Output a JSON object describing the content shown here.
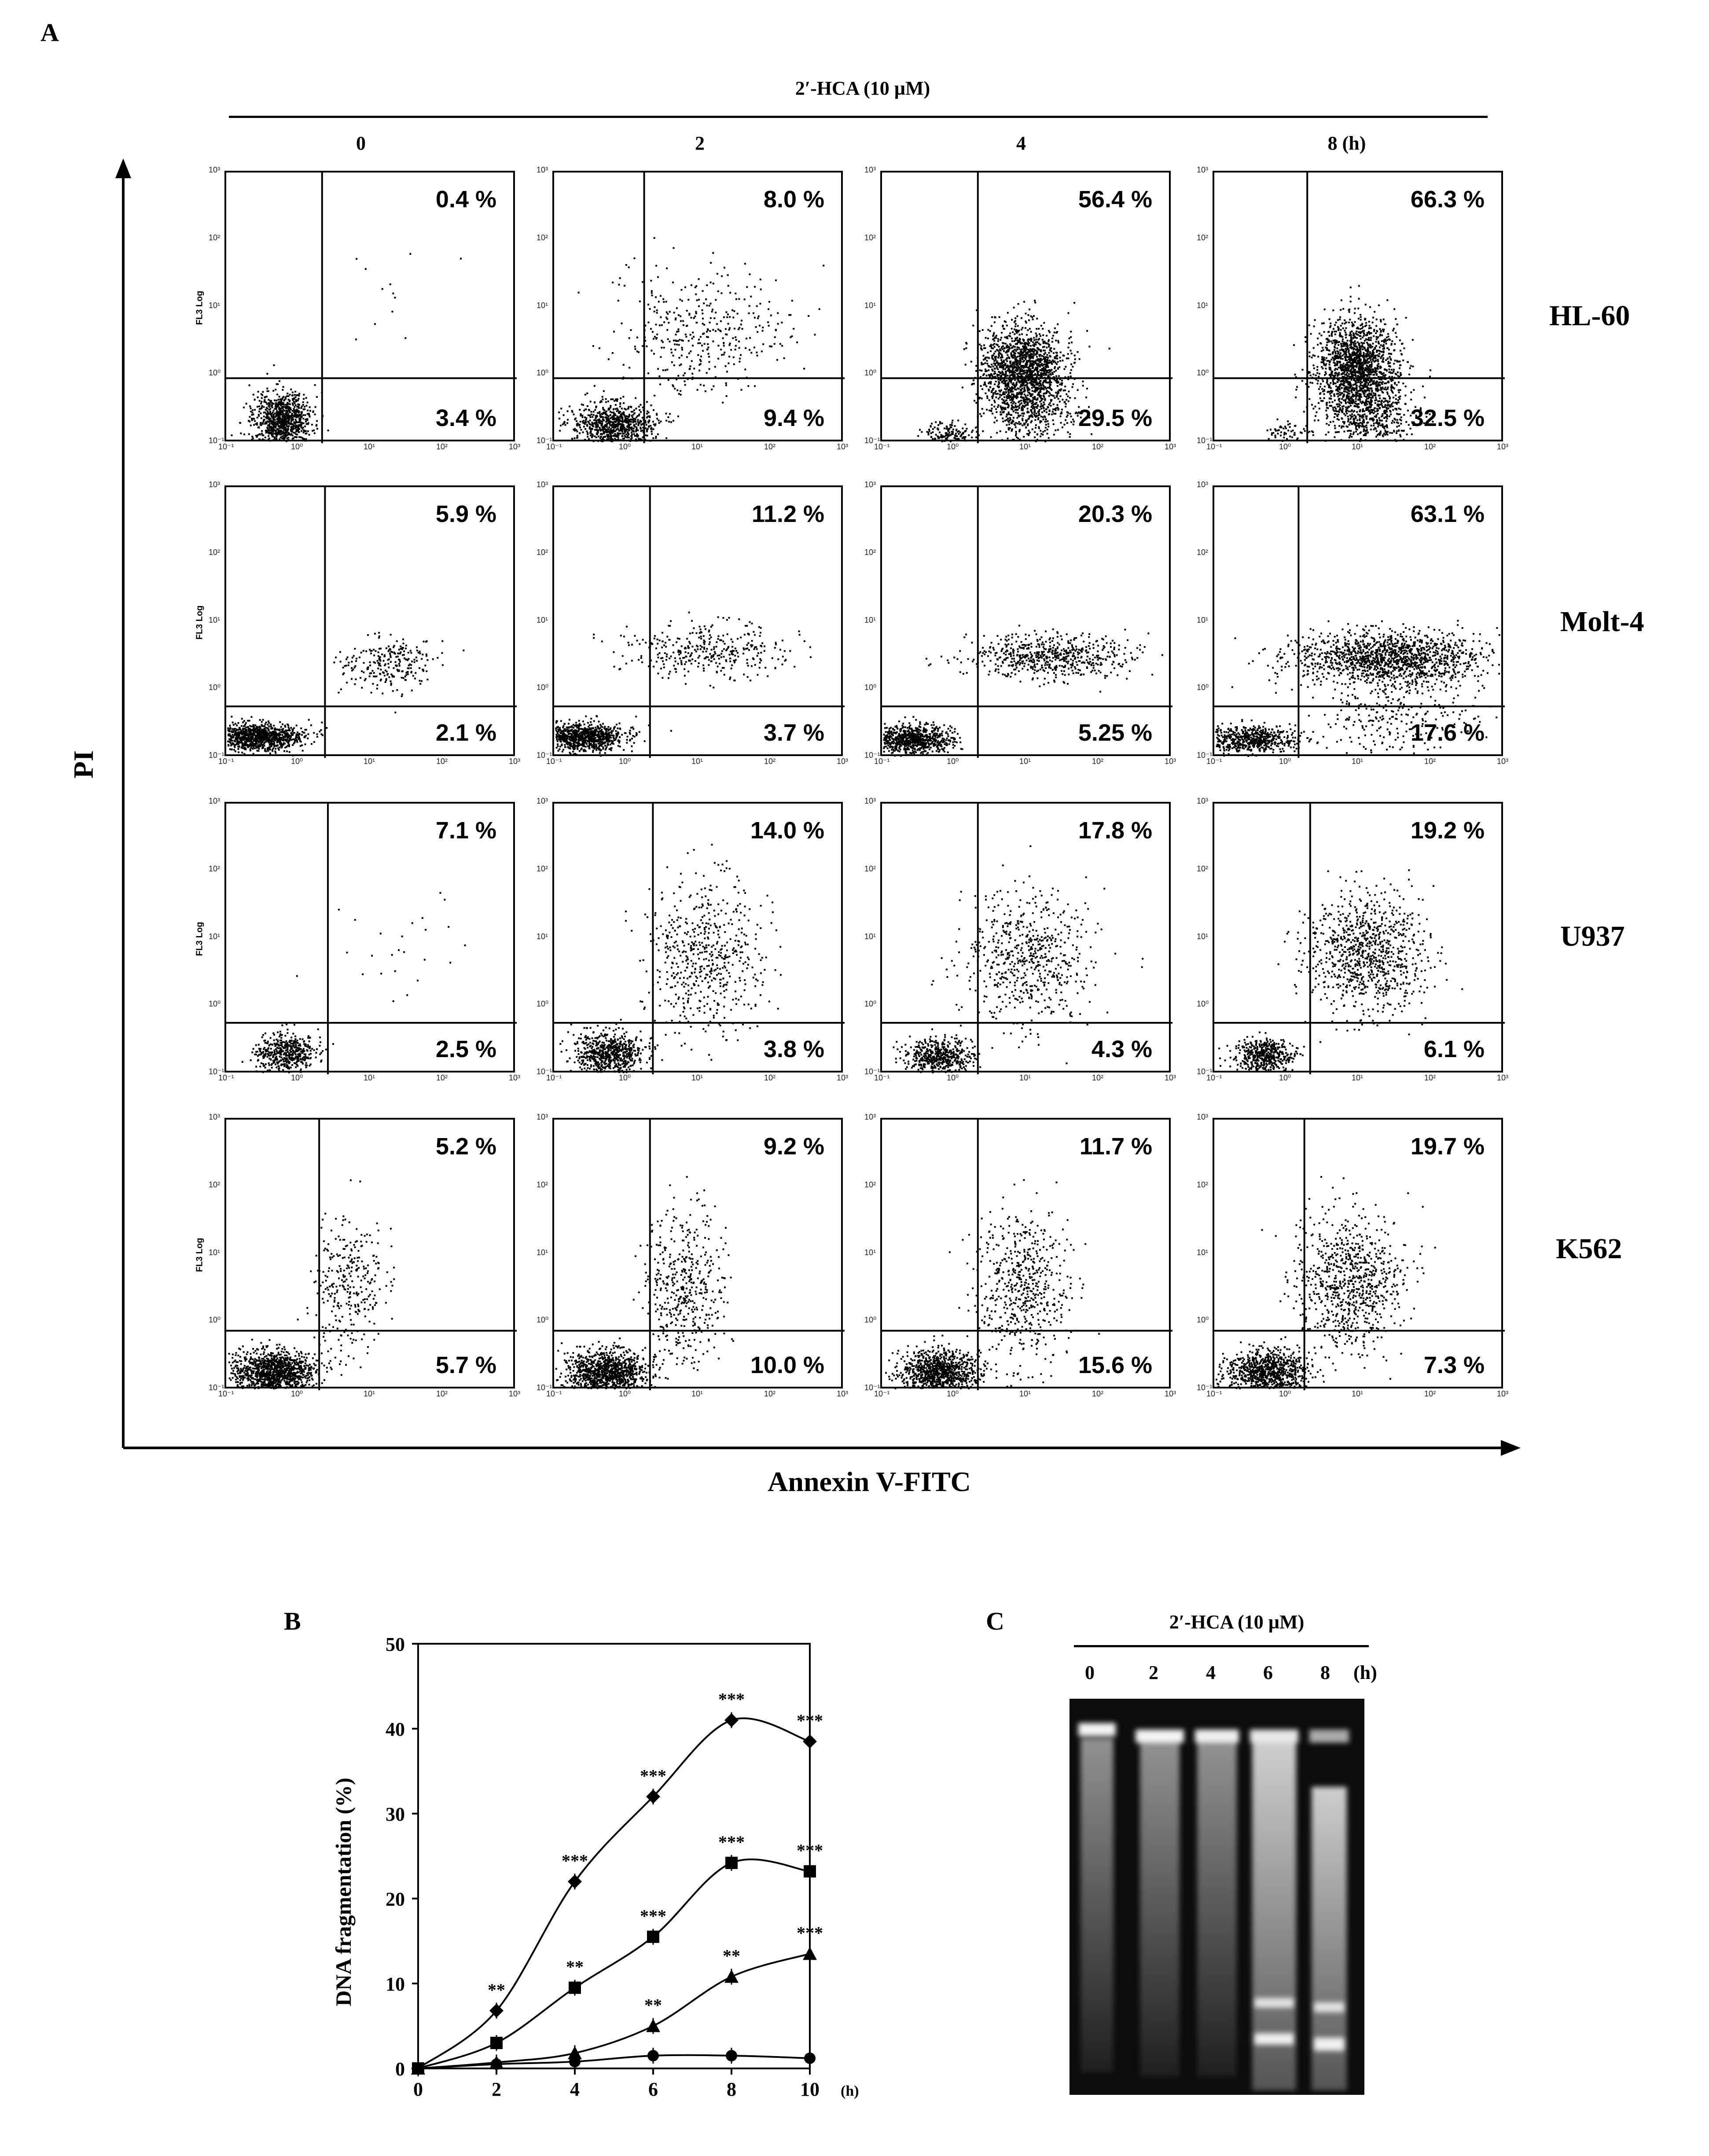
{
  "panel_a": {
    "letter": "A",
    "treatment": "2′-HCA (10 µM)",
    "timepoints": [
      "0",
      "2",
      "4",
      "8 (h)"
    ],
    "y_axis_title": "PI",
    "x_axis_title": "Annexin V-FITC",
    "ylabel_small": "FL3 Log",
    "rows": [
      {
        "cell_line": "HL-60",
        "upper": [
          "0.4 %",
          "8.0 %",
          "56.4 %",
          "66.3 %"
        ],
        "lower": [
          "3.4 %",
          "9.4 %",
          "29.5 %",
          "32.5 %"
        ]
      },
      {
        "cell_line": "Molt-4",
        "upper": [
          "5.9 %",
          "11.2 %",
          "20.3 %",
          "63.1 %"
        ],
        "lower": [
          "2.1 %",
          "3.7 %",
          "5.25 %",
          "17.6 %"
        ]
      },
      {
        "cell_line": "U937",
        "upper": [
          "7.1 %",
          "14.0 %",
          "17.8 %",
          "19.2 %"
        ],
        "lower": [
          "2.5 %",
          "3.8 %",
          "4.3 %",
          "6.1 %"
        ]
      },
      {
        "cell_line": "K562",
        "upper": [
          "5.2 %",
          "9.2 %",
          "11.7 %",
          "19.7 %"
        ],
        "lower": [
          "5.7 %",
          "10.0 %",
          "15.6 %",
          "7.3 %"
        ]
      }
    ]
  },
  "chart_data": {
    "type": "line",
    "panel_letter": "B",
    "title": "",
    "xlabel": "",
    "x_unit": "(h)",
    "ylabel": "DNA fragmentation (%)",
    "x": [
      0,
      2,
      4,
      6,
      8,
      10
    ],
    "xticks": [
      "0",
      "2",
      "4",
      "6",
      "8",
      "10"
    ],
    "ylim": [
      0,
      50
    ],
    "yticks": [
      "0",
      "10",
      "20",
      "30",
      "40",
      "50"
    ],
    "series": [
      {
        "name": "diamond",
        "marker": "diamond",
        "values": [
          0,
          6.8,
          22,
          32,
          41,
          38.5
        ],
        "stars": [
          "",
          "**",
          "***",
          "***",
          "***",
          "***"
        ]
      },
      {
        "name": "square",
        "marker": "square",
        "values": [
          0,
          3,
          9.5,
          15.5,
          24.2,
          23.2
        ],
        "stars": [
          "",
          "",
          "**",
          "***",
          "***",
          "***"
        ]
      },
      {
        "name": "triangle",
        "marker": "triangle",
        "values": [
          0,
          0.7,
          1.8,
          5,
          10.8,
          13.5
        ],
        "stars": [
          "",
          "",
          "",
          "**",
          "**",
          "***"
        ]
      },
      {
        "name": "circle",
        "marker": "circle",
        "values": [
          0,
          0.5,
          0.8,
          1.5,
          1.5,
          1.2
        ],
        "stars": [
          "",
          "",
          "",
          "",
          "",
          ""
        ]
      }
    ]
  },
  "panel_c": {
    "letter": "C",
    "treatment": "2′-HCA (10 µM)",
    "lanes": [
      "0",
      "2",
      "4",
      "6",
      "8"
    ],
    "unit": "(h)"
  }
}
